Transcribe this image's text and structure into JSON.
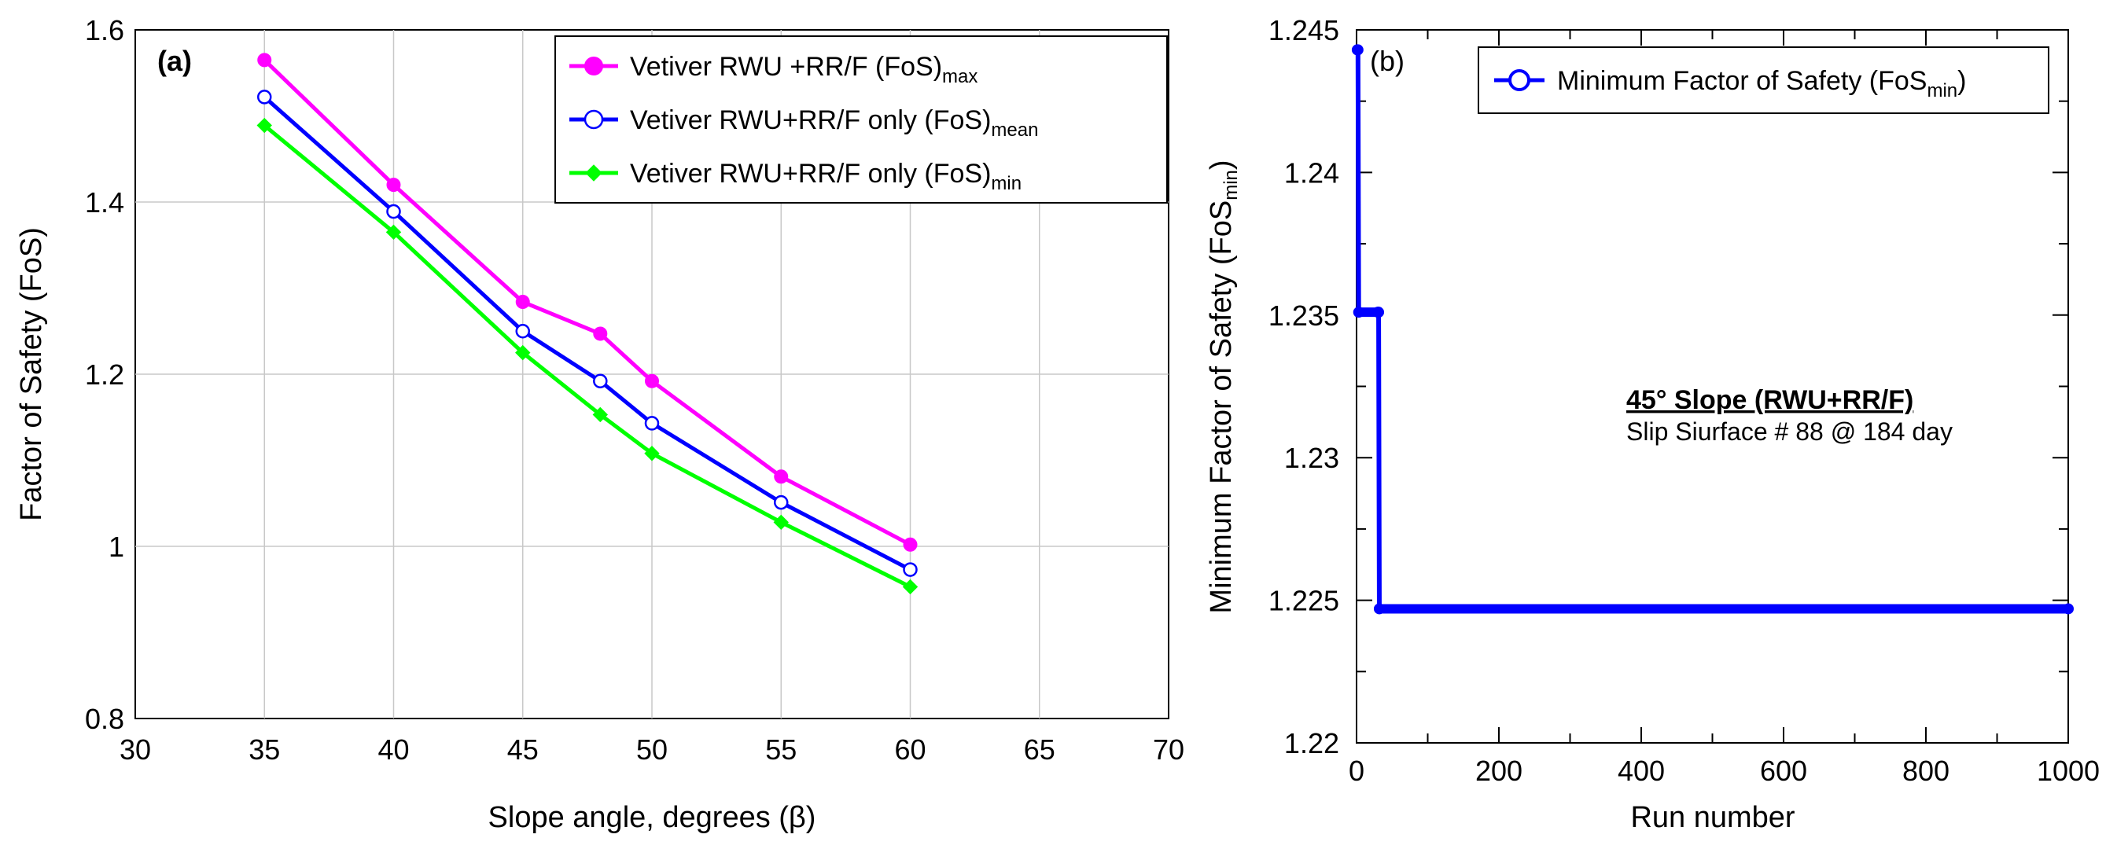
{
  "chart_data": [
    {
      "type": "line",
      "panel_label": "(a)",
      "xlabel": "Slope angle, degrees (β)",
      "ylabel": "Factor of Safety (FoS)",
      "xlim": [
        30,
        70
      ],
      "ylim": [
        0.8,
        1.6
      ],
      "xticks": [
        30,
        35,
        40,
        45,
        50,
        55,
        60,
        65,
        70
      ],
      "yticks": [
        0.8,
        1,
        1.2,
        1.4,
        1.6
      ],
      "grid": true,
      "legend_position": "top-right",
      "series": [
        {
          "name": "Vetiver RWU +RR/F (FoS)",
          "name_sub": "max",
          "color": "#ff00ff",
          "marker": "filled-circle",
          "x": [
            35,
            40,
            45,
            48,
            50,
            55,
            60
          ],
          "values": [
            1.565,
            1.42,
            1.284,
            1.247,
            1.192,
            1.081,
            1.002
          ]
        },
        {
          "name": "Vetiver RWU+RR/F only (FoS)",
          "name_sub": "mean",
          "color": "#0000ff",
          "marker": "open-circle",
          "x": [
            35,
            40,
            45,
            48,
            50,
            55,
            60
          ],
          "values": [
            1.522,
            1.389,
            1.25,
            1.192,
            1.143,
            1.051,
            0.973
          ]
        },
        {
          "name": "Vetiver RWU+RR/F only (FoS)",
          "name_sub": "min",
          "color": "#00ff00",
          "marker": "filled-diamond",
          "x": [
            35,
            40,
            45,
            48,
            50,
            55,
            60
          ],
          "values": [
            1.489,
            1.365,
            1.225,
            1.153,
            1.108,
            1.028,
            0.953
          ]
        }
      ]
    },
    {
      "type": "line",
      "panel_label": "(b)",
      "xlabel": "Run number",
      "ylabel": "Minimum Factor of Safety (FoS",
      "ylabel_sub": "min",
      "ylabel_close": ")",
      "xlim": [
        0,
        1000
      ],
      "ylim": [
        1.22,
        1.245
      ],
      "xticks": [
        0,
        200,
        400,
        600,
        800,
        1000
      ],
      "yticks": [
        1.22,
        1.225,
        1.23,
        1.235,
        1.24,
        1.245
      ],
      "ytick_labels": [
        "1.22",
        "1.225",
        "1.23",
        "1.235",
        "1.24",
        "1.245"
      ],
      "grid": false,
      "legend_position": "top-right",
      "annotation": {
        "title": "45° Slope (RWU+RR/F)",
        "subtitle": "Slip Siurface # 88 @ 184 day"
      },
      "series": [
        {
          "name": "Minimum Factor of Safety (FoS",
          "name_sub": "min",
          "name_close": ")",
          "color": "#0000ff",
          "marker": "open-circle",
          "x": [
            1,
            2,
            3,
            30,
            31,
            32,
            1000
          ],
          "values": [
            1.2443,
            1.2443,
            1.2351,
            1.2351,
            1.2351,
            1.2247,
            1.2247
          ]
        }
      ]
    }
  ]
}
